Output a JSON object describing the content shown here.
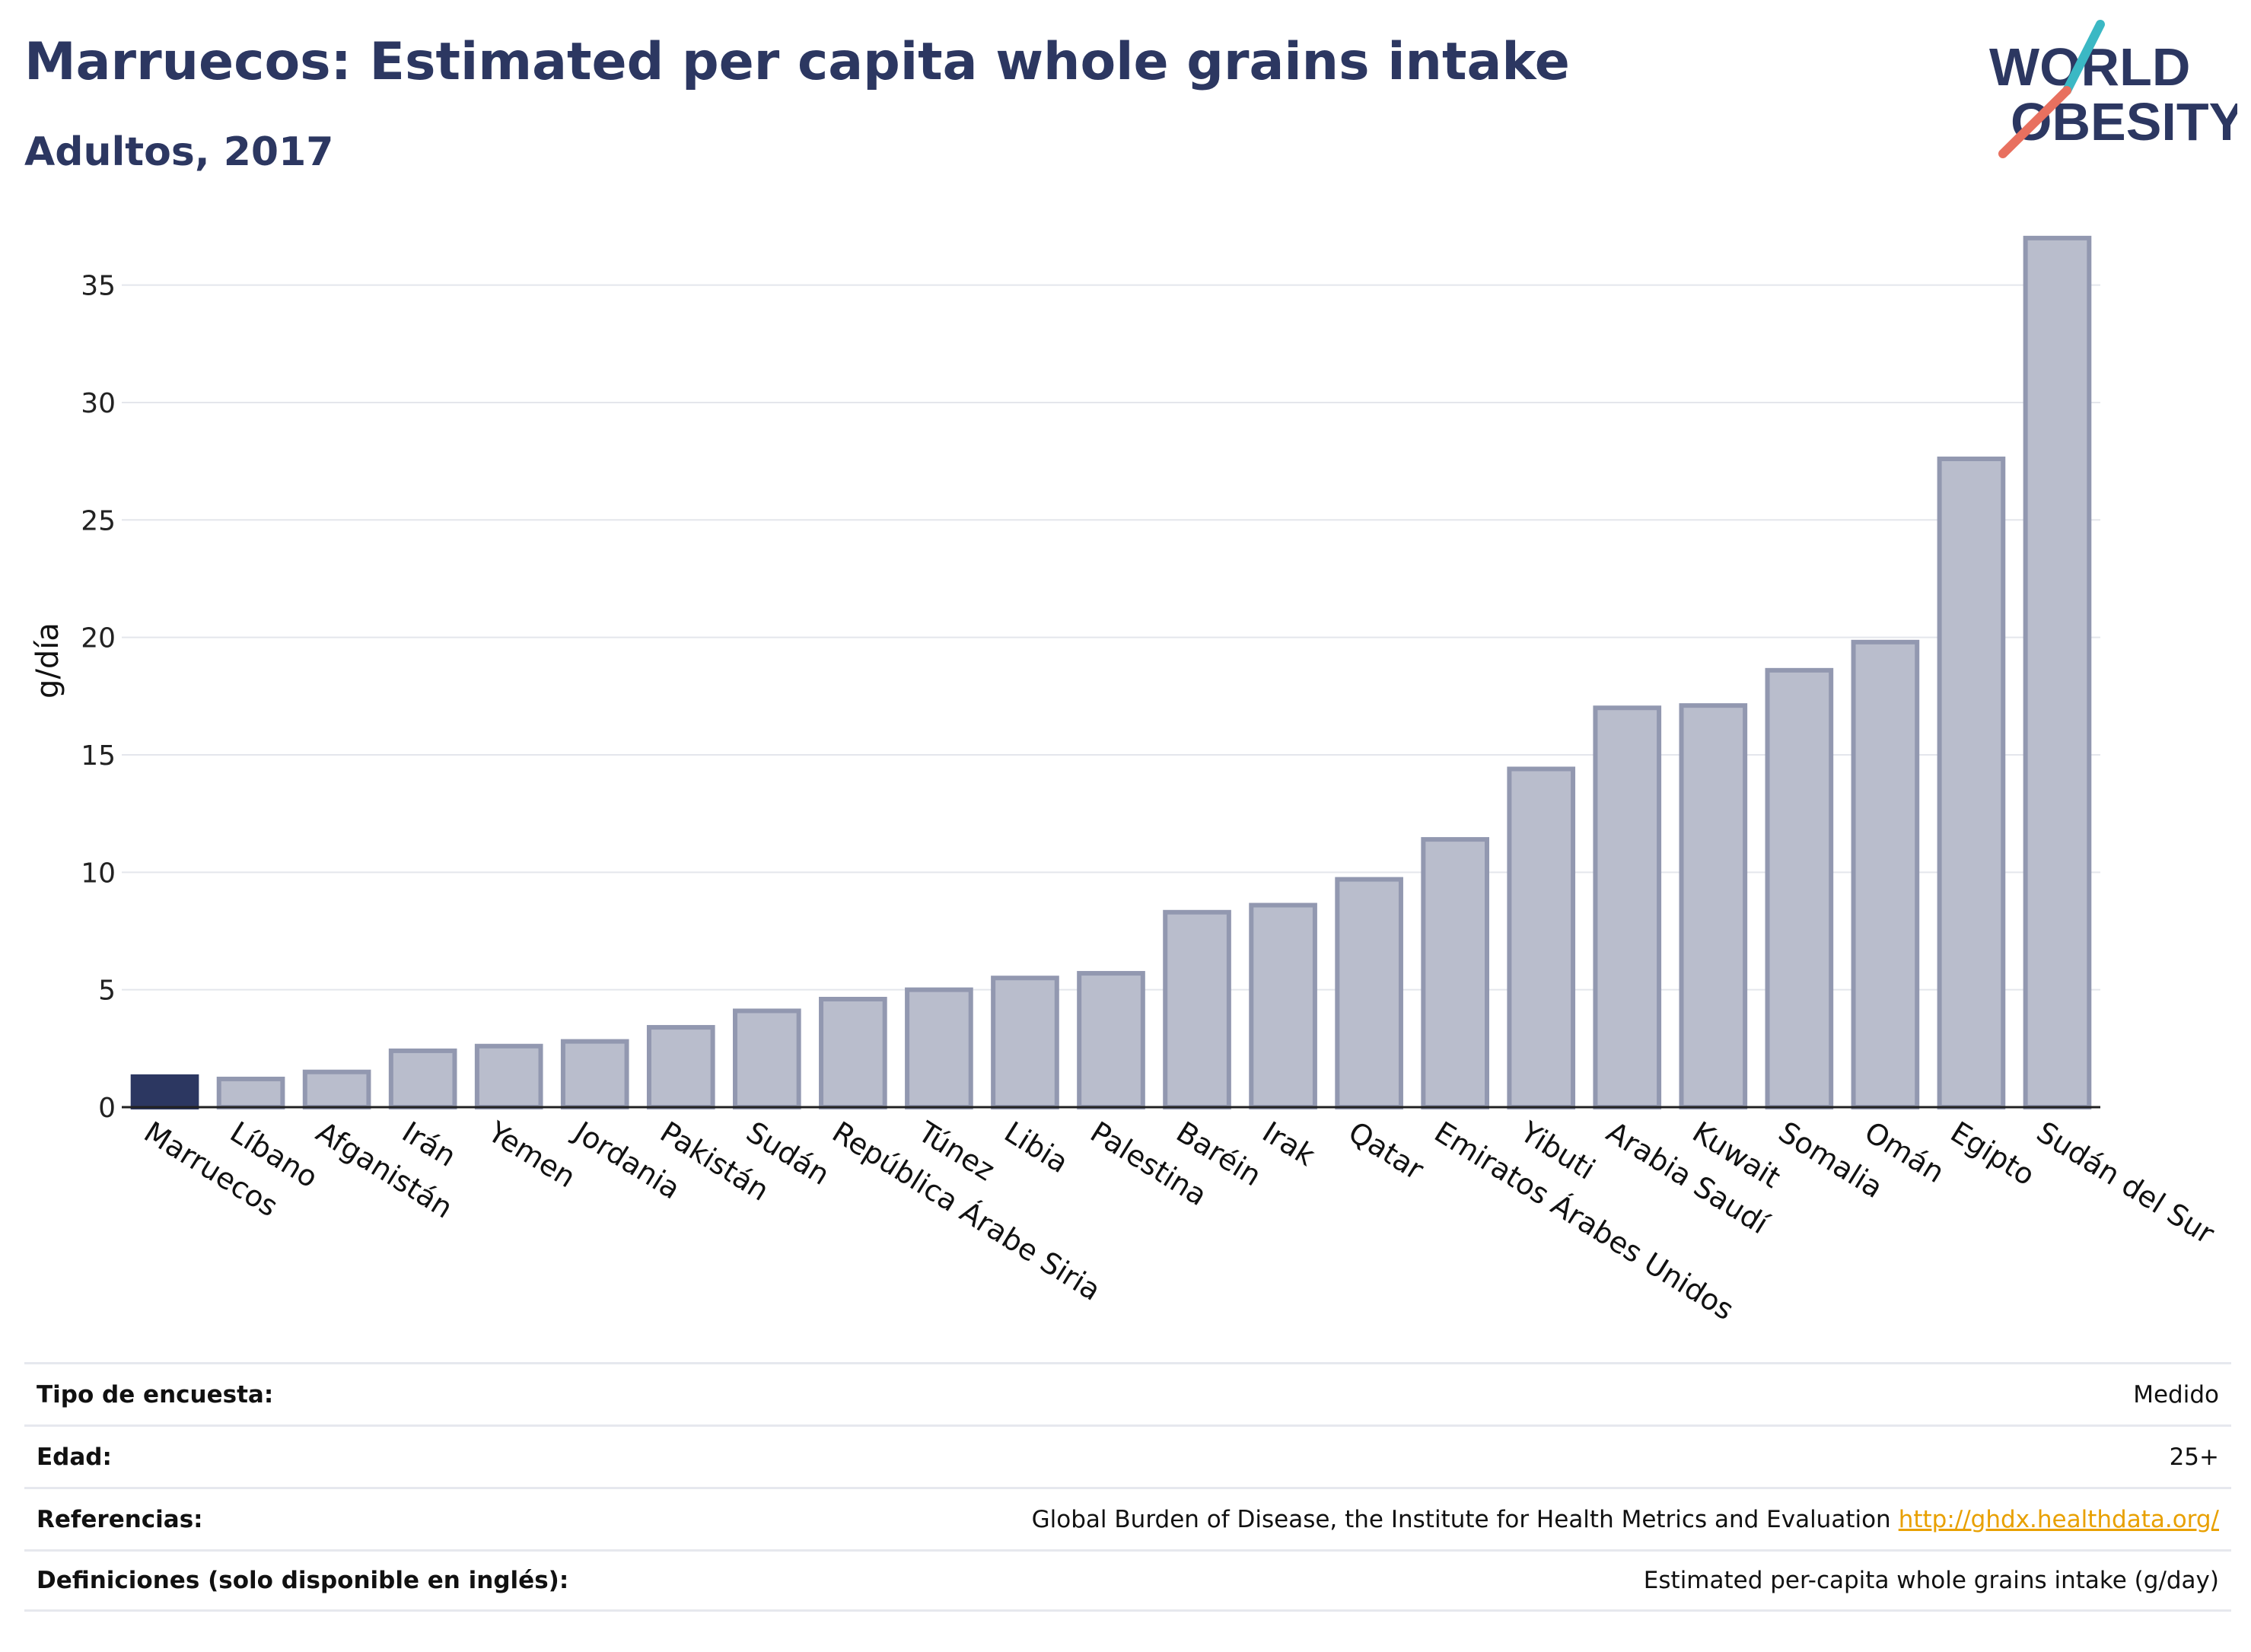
{
  "header": {
    "title": "Marruecos: Estimated per capita whole grains intake",
    "subtitle": "Adultos, 2017"
  },
  "logo": {
    "line1": "WORLD",
    "line2": "OBESITY",
    "accent_teal": "#3bb8c4",
    "accent_coral": "#e8705f",
    "text_color": "#2c3761"
  },
  "chart_data": {
    "type": "bar",
    "title": "Marruecos: Estimated per capita whole grains intake",
    "subtitle": "Adultos, 2017",
    "ylabel": "g/día",
    "xlabel": "",
    "ylim": [
      0,
      38
    ],
    "yticks": [
      0,
      5,
      10,
      15,
      20,
      25,
      30,
      35
    ],
    "grid": true,
    "highlight_category": "Marruecos",
    "highlight_color": "#2c3761",
    "bar_color": "#b9bdcc",
    "bar_border_color": "#9298b0",
    "categories": [
      "Marruecos",
      "Líbano",
      "Afganistán",
      "Irán",
      "Yemen",
      "Jordania",
      "Pakistán",
      "Sudán",
      "República Árabe Siria",
      "Túnez",
      "Libia",
      "Palestina",
      "Baréin",
      "Irak",
      "Qatar",
      "Emiratos Árabes Unidos",
      "Yibuti",
      "Arabia Saudí",
      "Kuwait",
      "Somalia",
      "Omán",
      "Egipto",
      "Sudán del Sur"
    ],
    "values": [
      1.3,
      1.2,
      1.5,
      2.4,
      2.6,
      2.8,
      3.4,
      4.1,
      4.6,
      5.0,
      5.5,
      5.7,
      8.3,
      8.6,
      9.7,
      11.4,
      14.4,
      17.0,
      17.1,
      18.6,
      19.8,
      27.6,
      37.0
    ]
  },
  "meta": [
    {
      "key": "Tipo de encuesta:",
      "value": "Medido",
      "link": ""
    },
    {
      "key": "Edad:",
      "value": "25+",
      "link": ""
    },
    {
      "key": "Referencias:",
      "value": "Global Burden of Disease, the Institute for Health Metrics and Evaluation",
      "link": "http://ghdx.healthdata.org/"
    },
    {
      "key": "Definiciones (solo disponible en inglés):",
      "value": "Estimated per-capita whole grains intake (g/day)",
      "link": ""
    }
  ]
}
